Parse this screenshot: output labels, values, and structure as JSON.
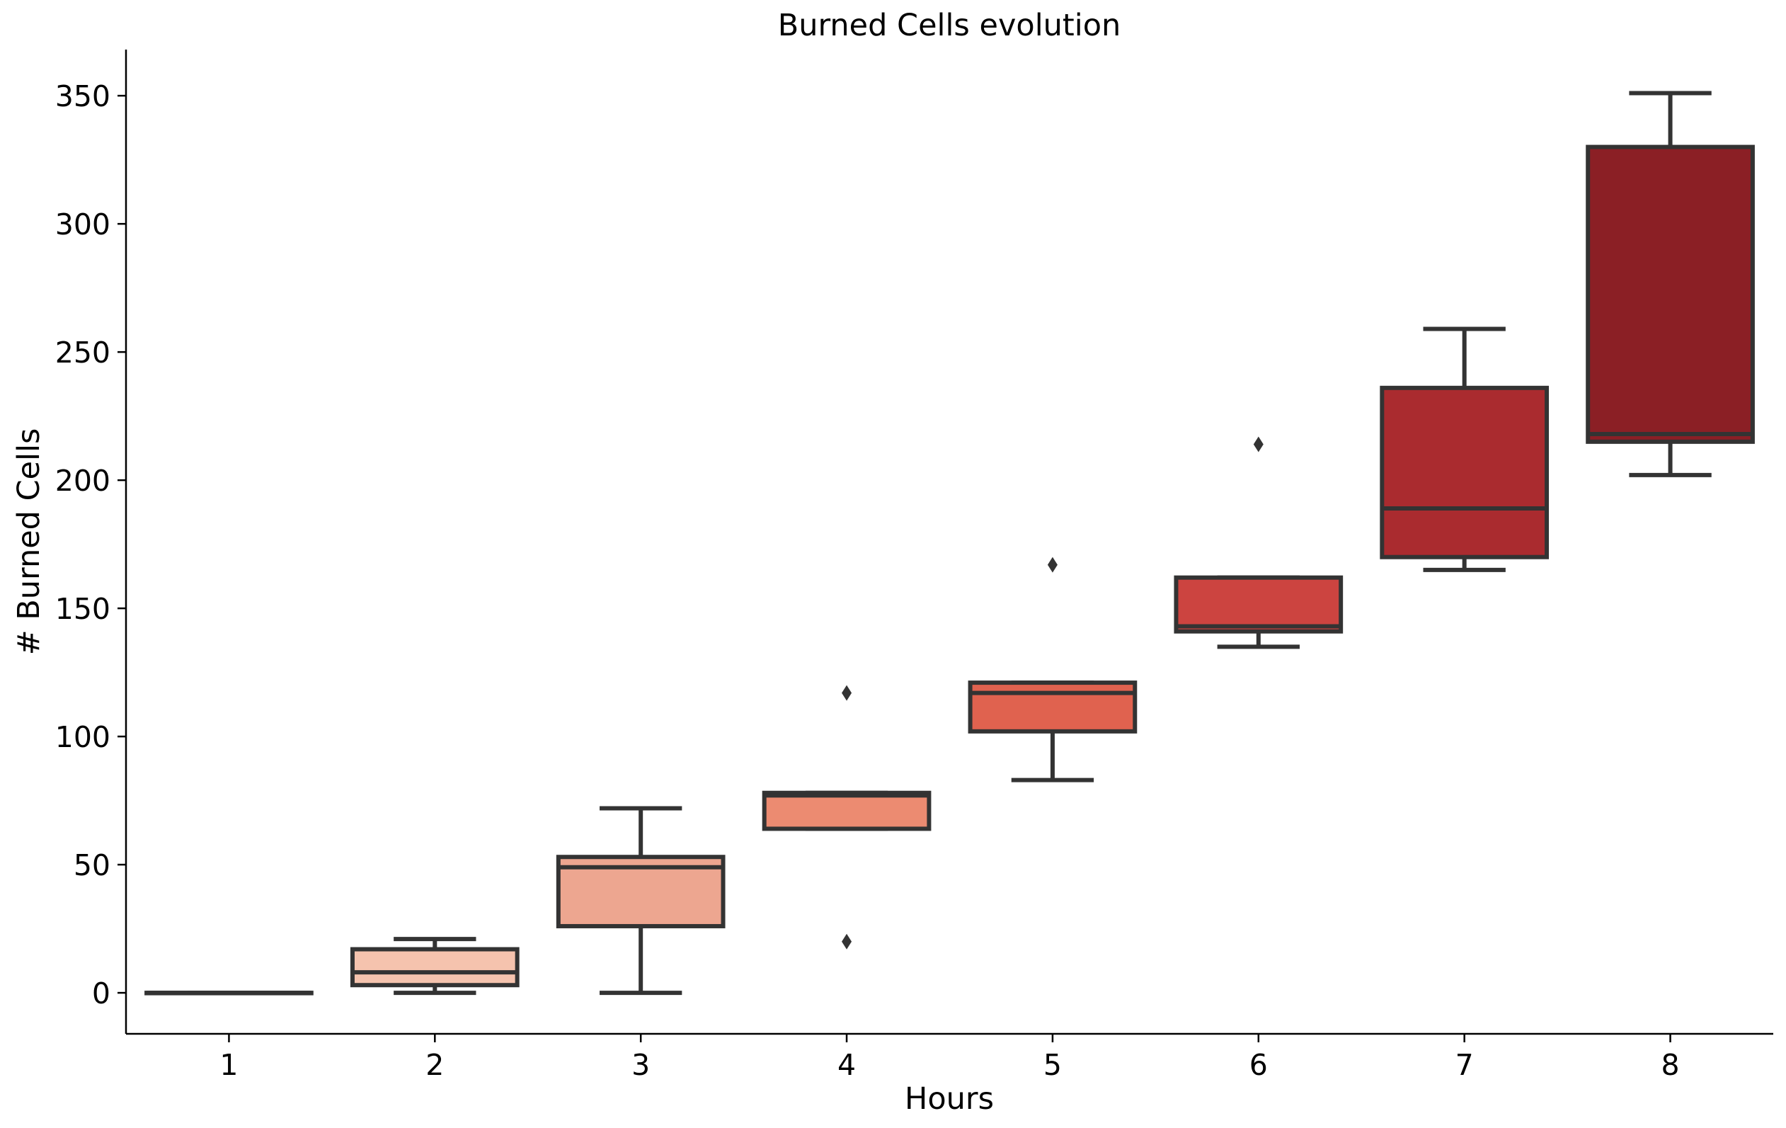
{
  "chart_data": {
    "type": "box",
    "title": "Burned Cells evolution",
    "xlabel": "Hours",
    "ylabel": "# Burned Cells",
    "categories": [
      "1",
      "2",
      "3",
      "4",
      "5",
      "6",
      "7",
      "8"
    ],
    "ylim": [
      -16,
      368
    ],
    "yticks": [
      0,
      50,
      100,
      150,
      200,
      250,
      300,
      350
    ],
    "boxes": [
      {
        "category": "1",
        "whisker_low": 0,
        "q1": 0,
        "median": 0,
        "q3": 0,
        "whisker_high": 0,
        "outliers": [],
        "color": "#fff5f0"
      },
      {
        "category": "2",
        "whisker_low": 0,
        "q1": 3,
        "median": 8,
        "q3": 17,
        "whisker_high": 21,
        "outliers": [],
        "color": "#f5c3ae"
      },
      {
        "category": "3",
        "whisker_low": 0,
        "q1": 26,
        "median": 49,
        "q3": 53,
        "whisker_high": 72,
        "outliers": [],
        "color": "#eda690"
      },
      {
        "category": "4",
        "whisker_low": 64,
        "q1": 64,
        "median": 77,
        "q3": 78,
        "whisker_high": 78,
        "outliers": [
          117,
          20
        ],
        "color": "#ec8b71"
      },
      {
        "category": "5",
        "whisker_low": 83,
        "q1": 102,
        "median": 117,
        "q3": 121,
        "whisker_high": 121,
        "outliers": [
          167
        ],
        "color": "#e0624f"
      },
      {
        "category": "6",
        "whisker_low": 135,
        "q1": 141,
        "median": 143,
        "q3": 162,
        "whisker_high": 162,
        "outliers": [
          214
        ],
        "color": "#cc4440"
      },
      {
        "category": "7",
        "whisker_low": 165,
        "q1": 170,
        "median": 189,
        "q3": 236,
        "whisker_high": 259,
        "outliers": [],
        "color": "#aa2b2f"
      },
      {
        "category": "8",
        "whisker_low": 202,
        "q1": 215,
        "median": 218,
        "q3": 330,
        "whisker_high": 351,
        "outliers": [],
        "color": "#8b1f25"
      }
    ]
  }
}
